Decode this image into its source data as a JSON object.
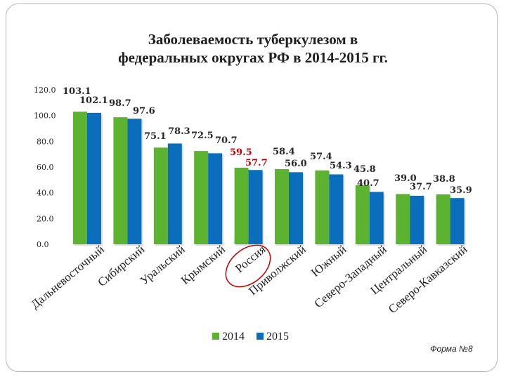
{
  "chart_data": {
    "type": "bar",
    "title_lines": [
      "Заболеваемость туберкулезом в",
      "федеральных округах РФ в 2014-2015 гг."
    ],
    "categories": [
      "Дальневосточный",
      "Сибирский",
      "Уральский",
      "Крымский",
      "Россия",
      "Приволжский",
      "Южный",
      "Северо-Западный",
      "Центральный",
      "Северо-Кавказский"
    ],
    "highlighted_category": "Россия",
    "series": [
      {
        "name": "2014",
        "color": "#5cb330",
        "values": [
          103.1,
          98.7,
          75.1,
          72.5,
          59.5,
          58.4,
          57.4,
          45.8,
          39.0,
          38.8
        ]
      },
      {
        "name": "2015",
        "color": "#0a6ebd",
        "values": [
          102.1,
          97.6,
          78.3,
          70.7,
          57.7,
          56.0,
          54.3,
          40.7,
          37.7,
          35.9
        ]
      }
    ],
    "value_labels_2014": [
      "103.1",
      "98.7",
      "75.1",
      "72.5",
      "59.5",
      "58.4",
      "57.4",
      "45.8",
      "39.0",
      "38.8"
    ],
    "value_labels_2015": [
      "102.1",
      "97.6",
      "78.3",
      "70.7",
      "57.7",
      "56.0",
      "54.3",
      "40.7",
      "37.7",
      "35.9"
    ],
    "yticks": [
      "0.0",
      "20.0",
      "40.0",
      "60.0",
      "80.0",
      "100.0",
      "120.0"
    ],
    "ylim": [
      0,
      120
    ],
    "legend_position": "bottom",
    "highlight_color": "#c00000"
  },
  "footnote": "Форма №8"
}
